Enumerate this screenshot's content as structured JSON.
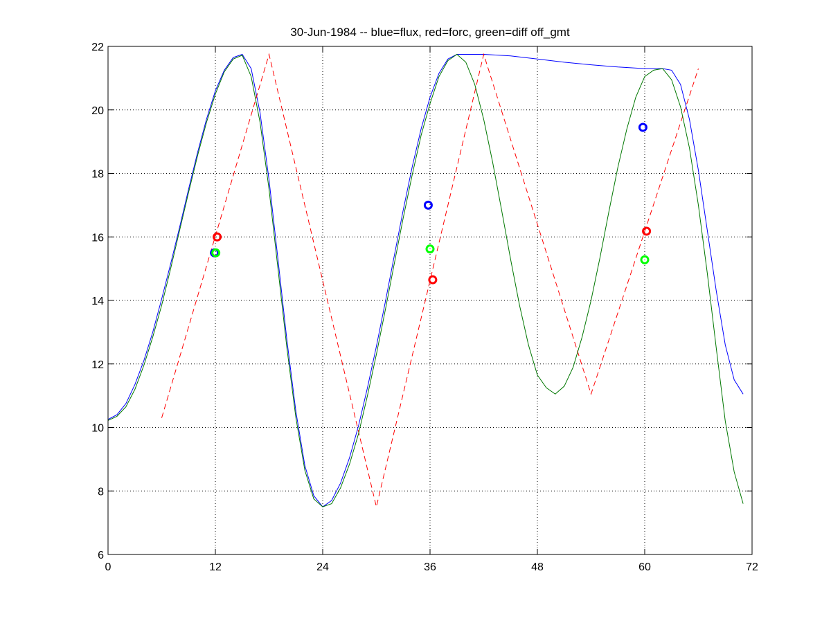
{
  "chart_data": {
    "type": "line",
    "title": "30-Jun-1984 -- blue=flux, red=forc, green=diff off_gmt",
    "xlabel": "",
    "ylabel": "",
    "xlim": [
      0,
      72
    ],
    "ylim": [
      6,
      22
    ],
    "x_ticks": [
      0,
      12,
      24,
      36,
      48,
      60,
      72
    ],
    "y_ticks": [
      6,
      8,
      10,
      12,
      14,
      16,
      18,
      20,
      22
    ],
    "grid": true,
    "grid_style": "dotted",
    "legend": "none",
    "series": [
      {
        "color": "#0000ff",
        "style": "solid",
        "points": [
          [
            0,
            10.25
          ],
          [
            1,
            10.4
          ],
          [
            2,
            10.75
          ],
          [
            3,
            11.35
          ],
          [
            4,
            12.1
          ],
          [
            5,
            13.0
          ],
          [
            6,
            14.05
          ],
          [
            7,
            15.15
          ],
          [
            8,
            16.3
          ],
          [
            9,
            17.5
          ],
          [
            10,
            18.65
          ],
          [
            11,
            19.7
          ],
          [
            12,
            20.6
          ],
          [
            13,
            21.25
          ],
          [
            14,
            21.65
          ],
          [
            15,
            21.75
          ],
          [
            16,
            21.3
          ],
          [
            17,
            19.9
          ],
          [
            18,
            17.8
          ],
          [
            19,
            15.3
          ],
          [
            20,
            12.75
          ],
          [
            21,
            10.5
          ],
          [
            22,
            8.8
          ],
          [
            23,
            7.85
          ],
          [
            24,
            7.5
          ],
          [
            25,
            7.7
          ],
          [
            26,
            8.25
          ],
          [
            27,
            9.05
          ],
          [
            28,
            10.05
          ],
          [
            29,
            11.25
          ],
          [
            30,
            12.55
          ],
          [
            31,
            13.95
          ],
          [
            32,
            15.4
          ],
          [
            33,
            16.85
          ],
          [
            34,
            18.2
          ],
          [
            35,
            19.4
          ],
          [
            36,
            20.4
          ],
          [
            37,
            21.15
          ],
          [
            38,
            21.6
          ],
          [
            39,
            21.75
          ],
          [
            42,
            21.75
          ],
          [
            45,
            21.7
          ],
          [
            48,
            21.6
          ],
          [
            51,
            21.5
          ],
          [
            54,
            21.42
          ],
          [
            57,
            21.35
          ],
          [
            60,
            21.3
          ],
          [
            62,
            21.3
          ],
          [
            63,
            21.25
          ],
          [
            64,
            20.8
          ],
          [
            65,
            19.7
          ],
          [
            66,
            18.1
          ],
          [
            67,
            16.2
          ],
          [
            68,
            14.3
          ],
          [
            69,
            12.6
          ],
          [
            70,
            11.5
          ],
          [
            71,
            11.05
          ]
        ]
      },
      {
        "color": "#ff0000",
        "style": "dashed",
        "points": [
          [
            6,
            10.3
          ],
          [
            18,
            21.75
          ],
          [
            30,
            7.5
          ],
          [
            42,
            21.75
          ],
          [
            54,
            11.05
          ],
          [
            66,
            21.3
          ]
        ]
      },
      {
        "color": "#007700",
        "style": "solid",
        "points": [
          [
            0,
            10.22
          ],
          [
            1,
            10.35
          ],
          [
            2,
            10.65
          ],
          [
            3,
            11.2
          ],
          [
            4,
            11.95
          ],
          [
            5,
            12.85
          ],
          [
            6,
            13.85
          ],
          [
            7,
            15.0
          ],
          [
            8,
            16.2
          ],
          [
            9,
            17.4
          ],
          [
            10,
            18.55
          ],
          [
            11,
            19.6
          ],
          [
            12,
            20.5
          ],
          [
            13,
            21.2
          ],
          [
            14,
            21.6
          ],
          [
            15,
            21.72
          ],
          [
            16,
            21.05
          ],
          [
            17,
            19.6
          ],
          [
            18,
            17.5
          ],
          [
            19,
            15.0
          ],
          [
            20,
            12.5
          ],
          [
            21,
            10.3
          ],
          [
            22,
            8.65
          ],
          [
            23,
            7.75
          ],
          [
            24,
            7.5
          ],
          [
            25,
            7.6
          ],
          [
            26,
            8.1
          ],
          [
            27,
            8.85
          ],
          [
            28,
            9.8
          ],
          [
            29,
            11.0
          ],
          [
            30,
            12.3
          ],
          [
            31,
            13.7
          ],
          [
            32,
            15.15
          ],
          [
            33,
            16.6
          ],
          [
            34,
            17.95
          ],
          [
            35,
            19.2
          ],
          [
            36,
            20.2
          ],
          [
            37,
            21.05
          ],
          [
            38,
            21.55
          ],
          [
            39,
            21.75
          ],
          [
            40,
            21.5
          ],
          [
            41,
            20.8
          ],
          [
            42,
            19.7
          ],
          [
            43,
            18.35
          ],
          [
            44,
            16.85
          ],
          [
            45,
            15.3
          ],
          [
            46,
            13.85
          ],
          [
            47,
            12.6
          ],
          [
            48,
            11.65
          ],
          [
            49,
            11.25
          ],
          [
            50,
            11.05
          ],
          [
            51,
            11.3
          ],
          [
            52,
            11.9
          ],
          [
            53,
            12.85
          ],
          [
            54,
            14.0
          ],
          [
            55,
            15.35
          ],
          [
            56,
            16.8
          ],
          [
            57,
            18.2
          ],
          [
            58,
            19.4
          ],
          [
            59,
            20.4
          ],
          [
            60,
            21.05
          ],
          [
            61,
            21.25
          ],
          [
            62,
            21.3
          ],
          [
            63,
            20.95
          ],
          [
            64,
            20.1
          ],
          [
            65,
            18.8
          ],
          [
            66,
            17.0
          ],
          [
            67,
            14.85
          ],
          [
            68,
            12.5
          ],
          [
            69,
            10.2
          ],
          [
            70,
            8.6
          ],
          [
            71,
            7.6
          ]
        ]
      }
    ],
    "markers": [
      {
        "color": "#0000ff",
        "x": 11.9,
        "y": 15.5
      },
      {
        "color": "#ff0000",
        "x": 12.2,
        "y": 16.0
      },
      {
        "color": "#00ff00",
        "x": 12.05,
        "y": 15.5
      },
      {
        "color": "#0000ff",
        "x": 35.8,
        "y": 17.0
      },
      {
        "color": "#00ff00",
        "x": 36.0,
        "y": 15.62
      },
      {
        "color": "#ff0000",
        "x": 36.3,
        "y": 14.65
      },
      {
        "color": "#0000ff",
        "x": 59.8,
        "y": 19.45
      },
      {
        "color": "#ff0000",
        "x": 60.2,
        "y": 16.18
      },
      {
        "color": "#00ff00",
        "x": 60.0,
        "y": 15.28
      }
    ]
  }
}
